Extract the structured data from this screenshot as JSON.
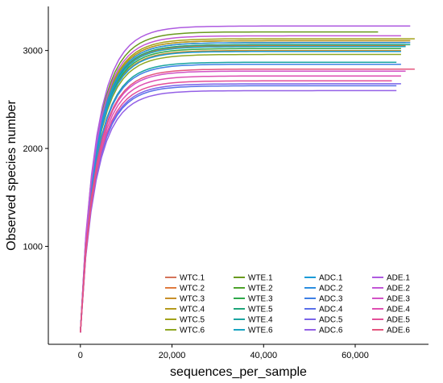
{
  "chart_data": {
    "type": "line",
    "xlabel": "sequences_per_sample",
    "ylabel": "Observed species number",
    "xlim": [
      -7000,
      76000
    ],
    "ylim": [
      0,
      3450
    ],
    "x_ticks": [
      0,
      20000,
      40000,
      60000
    ],
    "x_tick_labels": [
      "0",
      "20,000",
      "40,000",
      "60,000"
    ],
    "y_ticks": [
      1000,
      2000,
      3000
    ],
    "y_tick_labels": [
      "1000",
      "2000",
      "3000"
    ],
    "grid": false,
    "legend_position": "bottom-right",
    "legend_columns": 4,
    "series": [
      {
        "name": "WTC.1",
        "color": "#d4745a",
        "x": [
          0,
          72000
        ],
        "y": [
          120,
          3100
        ]
      },
      {
        "name": "WTC.2",
        "color": "#e07b3f",
        "x": [
          0,
          71000
        ],
        "y": [
          120,
          3050
        ]
      },
      {
        "name": "WTC.3",
        "color": "#c8902a",
        "x": [
          0,
          70000
        ],
        "y": [
          120,
          3000
        ]
      },
      {
        "name": "WTC.4",
        "color": "#b59a1e",
        "x": [
          0,
          72000
        ],
        "y": [
          120,
          3100
        ]
      },
      {
        "name": "WTC.5",
        "color": "#a3a219",
        "x": [
          0,
          73000
        ],
        "y": [
          120,
          3120
        ]
      },
      {
        "name": "WTC.6",
        "color": "#8fa722",
        "x": [
          0,
          70000
        ],
        "y": [
          120,
          2960
        ]
      },
      {
        "name": "WTE.1",
        "color": "#6a9a1f",
        "x": [
          0,
          65000
        ],
        "y": [
          120,
          3190
        ]
      },
      {
        "name": "WTE.2",
        "color": "#4ea32c",
        "x": [
          0,
          71000
        ],
        "y": [
          120,
          3080
        ]
      },
      {
        "name": "WTE.3",
        "color": "#2ea84a",
        "x": [
          0,
          70000
        ],
        "y": [
          120,
          3020
        ]
      },
      {
        "name": "WTE.5",
        "color": "#1fa579",
        "x": [
          0,
          72000
        ],
        "y": [
          120,
          3060
        ]
      },
      {
        "name": "WTE.4",
        "color": "#1aa5a0",
        "x": [
          0,
          69000
        ],
        "y": [
          120,
          2880
        ]
      },
      {
        "name": "WTE.6",
        "color": "#18a4c2",
        "x": [
          0,
          71000
        ],
        "y": [
          120,
          3040
        ]
      },
      {
        "name": "ADC.1",
        "color": "#1b9bd8",
        "x": [
          0,
          70000
        ],
        "y": [
          120,
          2990
        ]
      },
      {
        "name": "ADC.2",
        "color": "#2c8ee0",
        "x": [
          0,
          72000
        ],
        "y": [
          120,
          3080
        ]
      },
      {
        "name": "ADC.3",
        "color": "#3e80e6",
        "x": [
          0,
          70000
        ],
        "y": [
          120,
          2860
        ]
      },
      {
        "name": "ADC.4",
        "color": "#5a70ea",
        "x": [
          0,
          69000
        ],
        "y": [
          120,
          2640
        ]
      },
      {
        "name": "ADC.5",
        "color": "#7a64ea",
        "x": [
          0,
          70000
        ],
        "y": [
          120,
          2660
        ]
      },
      {
        "name": "ADC.6",
        "color": "#9460e6",
        "x": [
          0,
          69000
        ],
        "y": [
          120,
          2590
        ]
      },
      {
        "name": "ADE.1",
        "color": "#ae5be0",
        "x": [
          0,
          72000
        ],
        "y": [
          120,
          3250
        ]
      },
      {
        "name": "ADE.2",
        "color": "#c257d6",
        "x": [
          0,
          70000
        ],
        "y": [
          120,
          3150
        ]
      },
      {
        "name": "ADE.3",
        "color": "#d252c6",
        "x": [
          0,
          71000
        ],
        "y": [
          120,
          2790
        ]
      },
      {
        "name": "ADE.4",
        "color": "#de4fb2",
        "x": [
          0,
          70000
        ],
        "y": [
          120,
          2740
        ]
      },
      {
        "name": "ADE.5",
        "color": "#e34f99",
        "x": [
          0,
          68000
        ],
        "y": [
          120,
          2690
        ]
      },
      {
        "name": "ADE.6",
        "color": "#e4557e",
        "x": [
          0,
          73000
        ],
        "y": [
          120,
          2810
        ]
      }
    ]
  }
}
